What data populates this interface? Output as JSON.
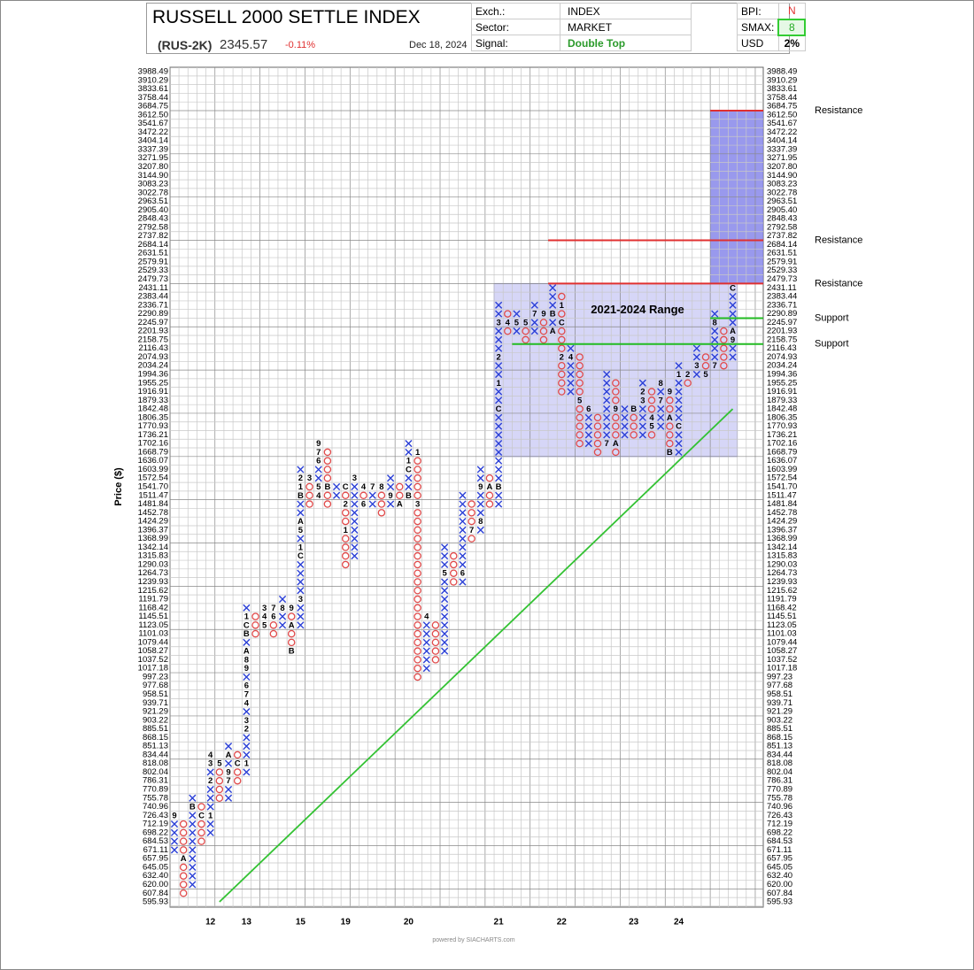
{
  "header": {
    "title": "RUSSELL 2000 SETTLE INDEX",
    "symbol": "(RUS-2K)",
    "price": "2345.57",
    "change": "-0.11%",
    "date": "Dec 18, 2024",
    "exch_label": "Exch.:",
    "exch": "INDEX",
    "sector_label": "Sector:",
    "sector": "MARKET",
    "signal_label": "Signal:",
    "signal": "Double Top",
    "bpi_label": "BPI:",
    "bpi": "N",
    "smax_label": "SMAX:",
    "smax": "8",
    "usd_label": "USD",
    "usd": "2%"
  },
  "chart_data": {
    "type": "point_and_figure",
    "y_label": "Price ($)",
    "log_scale": true,
    "grid": true,
    "ylim": [
      595.93,
      3988.49
    ],
    "yticks": [
      3988.49,
      3910.29,
      3833.61,
      3758.44,
      3684.75,
      {
        "value": 3612.5,
        "label": "3612.50"
      },
      3541.67,
      3472.22,
      3404.14,
      3337.39,
      3271.95,
      {
        "value": 3207.8,
        "label": "3207.80"
      },
      {
        "value": 3144.9,
        "label": "3144.90"
      },
      3083.23,
      3022.78,
      2963.51,
      {
        "value": 2905.4,
        "label": "2905.40"
      },
      2848.43,
      2792.58,
      2737.82,
      2684.14,
      2631.51,
      2579.91,
      2529.33,
      2479.73,
      2431.11,
      2383.44,
      2336.71,
      2290.89,
      2245.97,
      2201.93,
      2158.75,
      2116.43,
      2074.93,
      2034.24,
      1994.36,
      1955.25,
      1916.91,
      1879.33,
      1842.48,
      1806.35,
      1770.93,
      1736.21,
      1702.16,
      1668.79,
      1636.07,
      1603.99,
      1572.54,
      {
        "value": 1541.7,
        "label": "1541.70"
      },
      1511.47,
      1481.84,
      1452.78,
      1424.29,
      1396.37,
      1368.99,
      1342.14,
      1315.83,
      1290.03,
      1264.73,
      1239.93,
      1215.62,
      1191.79,
      1168.42,
      1145.51,
      1123.05,
      1101.03,
      1079.44,
      1058.27,
      1037.52,
      1017.18,
      997.23,
      977.68,
      958.51,
      939.71,
      921.29,
      903.22,
      885.51,
      868.15,
      851.13,
      834.44,
      818.08,
      802.04,
      786.31,
      770.89,
      755.78,
      740.96,
      726.43,
      712.19,
      698.22,
      684.53,
      671.11,
      657.95,
      645.05,
      {
        "value": 632.4,
        "label": "632.40"
      },
      {
        "value": 620,
        "label": "620.00"
      },
      607.84,
      595.93
    ],
    "colors": {
      "X": "#2a3fd6",
      "O": "#e14b4b"
    },
    "columns": [
      {
        "kind": "X",
        "low": 671.11,
        "high": 726.43,
        "months": [
          {
            "label": "9",
            "value": 726.43
          }
        ]
      },
      {
        "kind": "O",
        "low": 607.84,
        "high": 712.19,
        "months": [
          {
            "label": "A",
            "value": 657.95
          }
        ]
      },
      {
        "kind": "X",
        "low": 620,
        "high": 755.78,
        "months": [
          {
            "label": "B",
            "value": 740.96
          }
        ]
      },
      {
        "kind": "O",
        "low": 684.53,
        "high": 740.96,
        "months": [
          {
            "label": "C",
            "value": 726.43
          }
        ]
      },
      {
        "kind": "X",
        "low": 698.22,
        "high": 834.44,
        "year": "12",
        "months": [
          {
            "label": "1",
            "value": 726.43
          },
          {
            "label": "2",
            "value": 786.31
          },
          {
            "label": "3",
            "value": 818.08
          },
          {
            "label": "4",
            "value": 834.44
          }
        ]
      },
      {
        "kind": "O",
        "low": 755.78,
        "high": 818.08,
        "months": [
          {
            "label": "5",
            "value": 818.08
          }
        ]
      },
      {
        "kind": "X",
        "low": 755.78,
        "high": 851.13,
        "months": [
          {
            "label": "7",
            "value": 786.31
          },
          {
            "label": "9",
            "value": 802.04
          },
          {
            "label": "A",
            "value": 834.44
          }
        ]
      },
      {
        "kind": "O",
        "low": 786.31,
        "high": 834.44,
        "months": [
          {
            "label": "C",
            "value": 818.08
          }
        ]
      },
      {
        "kind": "X",
        "low": 802.04,
        "high": 1168.42,
        "year": "13",
        "months": [
          {
            "label": "1",
            "value": 818.08
          },
          {
            "label": "2",
            "value": 885.51
          },
          {
            "label": "3",
            "value": 903.22
          },
          {
            "label": "4",
            "value": 939.71
          },
          {
            "label": "7",
            "value": 958.51
          },
          {
            "label": "6",
            "value": 977.68
          },
          {
            "label": "9",
            "value": 1017.18
          },
          {
            "label": "8",
            "value": 1037.52
          },
          {
            "label": "A",
            "value": 1058.27
          },
          {
            "label": "B",
            "value": 1101.03
          },
          {
            "label": "C",
            "value": 1123.05
          },
          {
            "label": "1",
            "value": 1145.51
          }
        ]
      },
      {
        "kind": "O",
        "low": 1101.03,
        "high": 1145.51
      },
      {
        "kind": "X",
        "low": 1123.05,
        "high": 1168.42,
        "months": [
          {
            "label": "3",
            "value": 1168.42
          },
          {
            "label": "4",
            "value": 1145.51
          },
          {
            "label": "5",
            "value": 1123.05
          }
        ]
      },
      {
        "kind": "O",
        "low": 1101.03,
        "high": 1168.42,
        "months": [
          {
            "label": "7",
            "value": 1168.42
          },
          {
            "label": "6",
            "value": 1145.51
          }
        ]
      },
      {
        "kind": "X",
        "low": 1123.05,
        "high": 1191.79,
        "months": [
          {
            "label": "8",
            "value": 1168.42
          }
        ]
      },
      {
        "kind": "O",
        "low": 1058.27,
        "high": 1168.42,
        "months": [
          {
            "label": "9",
            "value": 1168.42
          },
          {
            "label": "A",
            "value": 1123.05
          },
          {
            "label": "B",
            "value": 1058.27
          }
        ]
      },
      {
        "kind": "X",
        "low": 1123.05,
        "high": 1603.99,
        "year": "15",
        "months": [
          {
            "label": "3",
            "value": 1191.79
          },
          {
            "label": "C",
            "value": 1315.83
          },
          {
            "label": "1",
            "value": 1342.14
          },
          {
            "label": "5",
            "value": 1396.37
          },
          {
            "label": "A",
            "value": 1424.29
          },
          {
            "label": "B",
            "value": 1511.47
          },
          {
            "label": "1",
            "value": 1541.7
          },
          {
            "label": "2",
            "value": 1572.54
          }
        ]
      },
      {
        "kind": "O",
        "low": 1481.84,
        "high": 1572.54,
        "months": [
          {
            "label": "3",
            "value": 1572.54
          }
        ]
      },
      {
        "kind": "X",
        "low": 1511.47,
        "high": 1702.16,
        "months": [
          {
            "label": "4",
            "value": 1511.47
          },
          {
            "label": "5",
            "value": 1541.7
          },
          {
            "label": "6",
            "value": 1636.07
          },
          {
            "label": "7",
            "value": 1668.79
          },
          {
            "label": "9",
            "value": 1702.16
          }
        ]
      },
      {
        "kind": "O",
        "low": 1481.84,
        "high": 1668.79,
        "months": [
          {
            "label": "B",
            "value": 1541.7
          }
        ]
      },
      {
        "kind": "X",
        "low": 1511.47,
        "high": 1541.7
      },
      {
        "kind": "O",
        "low": 1290.03,
        "high": 1541.7,
        "year": "19",
        "months": [
          {
            "label": "C",
            "value": 1541.7
          },
          {
            "label": "2",
            "value": 1481.84
          },
          {
            "label": "1",
            "value": 1396.37
          }
        ]
      },
      {
        "kind": "X",
        "low": 1315.83,
        "high": 1572.54,
        "months": [
          {
            "label": "3",
            "value": 1572.54
          }
        ]
      },
      {
        "kind": "O",
        "low": 1481.84,
        "high": 1541.7,
        "months": [
          {
            "label": "4",
            "value": 1541.7
          },
          {
            "label": "6",
            "value": 1481.84
          }
        ]
      },
      {
        "kind": "X",
        "low": 1481.84,
        "high": 1541.7,
        "months": [
          {
            "label": "7",
            "value": 1541.7
          }
        ]
      },
      {
        "kind": "O",
        "low": 1452.78,
        "high": 1541.7,
        "months": [
          {
            "label": "8",
            "value": 1541.7
          }
        ]
      },
      {
        "kind": "X",
        "low": 1481.84,
        "high": 1572.54,
        "months": [
          {
            "label": "9",
            "value": 1511.47
          }
        ]
      },
      {
        "kind": "O",
        "low": 1481.84,
        "high": 1541.7,
        "months": [
          {
            "label": "A",
            "value": 1481.84
          }
        ]
      },
      {
        "kind": "X",
        "low": 1511.47,
        "high": 1702.16,
        "year": "20",
        "months": [
          {
            "label": "B",
            "value": 1511.47
          },
          {
            "label": "C",
            "value": 1603.99
          },
          {
            "label": "1",
            "value": 1636.07
          }
        ]
      },
      {
        "kind": "O",
        "low": 997.23,
        "high": 1668.79,
        "months": [
          {
            "label": "1",
            "value": 1668.79
          },
          {
            "label": "3",
            "value": 1481.84
          }
        ]
      },
      {
        "kind": "X",
        "low": 1017.18,
        "high": 1145.51,
        "months": [
          {
            "label": "4",
            "value": 1145.51
          }
        ]
      },
      {
        "kind": "O",
        "low": 1037.52,
        "high": 1123.05
      },
      {
        "kind": "X",
        "low": 1058.27,
        "high": 1342.14,
        "months": [
          {
            "label": "5",
            "value": 1264.73
          }
        ]
      },
      {
        "kind": "O",
        "low": 1239.93,
        "high": 1315.83
      },
      {
        "kind": "X",
        "low": 1239.93,
        "high": 1511.47,
        "months": [
          {
            "label": "6",
            "value": 1264.73
          }
        ]
      },
      {
        "kind": "O",
        "low": 1368.99,
        "high": 1481.84,
        "months": [
          {
            "label": "7",
            "value": 1396.37
          }
        ]
      },
      {
        "kind": "X",
        "low": 1396.37,
        "high": 1603.99,
        "months": [
          {
            "label": "8",
            "value": 1424.29
          },
          {
            "label": "9",
            "value": 1541.7
          }
        ]
      },
      {
        "kind": "O",
        "low": 1481.84,
        "high": 1572.54,
        "months": [
          {
            "label": "A",
            "value": 1541.7
          }
        ]
      },
      {
        "kind": "X",
        "low": 1481.84,
        "high": 2336.71,
        "year": "21",
        "months": [
          {
            "label": "B",
            "value": 1541.7
          },
          {
            "label": "C",
            "value": 1842.48
          },
          {
            "label": "1",
            "value": 1955.25
          },
          {
            "label": "2",
            "value": 2074.93
          },
          {
            "label": "3",
            "value": 2245.97
          }
        ]
      },
      {
        "kind": "O",
        "low": 2201.93,
        "high": 2290.89,
        "months": [
          {
            "label": "4",
            "value": 2245.97
          }
        ]
      },
      {
        "kind": "X",
        "low": 2201.93,
        "high": 2290.89,
        "months": [
          {
            "label": "5",
            "value": 2245.97
          }
        ]
      },
      {
        "kind": "O",
        "low": 2158.75,
        "high": 2245.97,
        "months": [
          {
            "label": "5",
            "value": 2245.97
          }
        ]
      },
      {
        "kind": "X",
        "low": 2201.93,
        "high": 2336.71,
        "months": [
          {
            "label": "7",
            "value": 2290.89
          }
        ]
      },
      {
        "kind": "O",
        "low": 2158.75,
        "high": 2290.89,
        "months": [
          {
            "label": "9",
            "value": 2290.89
          }
        ]
      },
      {
        "kind": "X",
        "low": 2201.93,
        "high": 2431.11,
        "months": [
          {
            "label": "A",
            "value": 2201.93
          },
          {
            "label": "B",
            "value": 2290.89
          }
        ]
      },
      {
        "kind": "O",
        "low": 1916.91,
        "high": 2383.44,
        "year": "22",
        "months": [
          {
            "label": "1",
            "value": 2336.71
          },
          {
            "label": "C",
            "value": 2245.97
          },
          {
            "label": "2",
            "value": 2074.93
          }
        ]
      },
      {
        "kind": "X",
        "low": 1916.91,
        "high": 2116.43,
        "months": [
          {
            "label": "4",
            "value": 2074.93
          }
        ]
      },
      {
        "kind": "O",
        "low": 1702.16,
        "high": 2074.93,
        "months": [
          {
            "label": "5",
            "value": 1879.33
          }
        ]
      },
      {
        "kind": "X",
        "low": 1702.16,
        "high": 1842.48,
        "months": [
          {
            "label": "6",
            "value": 1842.48
          }
        ]
      },
      {
        "kind": "O",
        "low": 1668.79,
        "high": 1806.35
      },
      {
        "kind": "X",
        "low": 1702.16,
        "high": 1994.36,
        "months": [
          {
            "label": "7",
            "value": 1702.16
          }
        ]
      },
      {
        "kind": "O",
        "low": 1668.79,
        "high": 1955.25,
        "months": [
          {
            "label": "9",
            "value": 1842.48
          },
          {
            "label": "A",
            "value": 1702.16
          }
        ]
      },
      {
        "kind": "X",
        "low": 1736.21,
        "high": 1842.48
      },
      {
        "kind": "O",
        "low": 1736.21,
        "high": 1842.48,
        "year": "23",
        "months": [
          {
            "label": "B",
            "value": 1842.48
          }
        ]
      },
      {
        "kind": "X",
        "low": 1736.21,
        "high": 1955.25,
        "months": [
          {
            "label": "3",
            "value": 1879.33
          },
          {
            "label": "2",
            "value": 1916.91
          }
        ]
      },
      {
        "kind": "O",
        "low": 1736.21,
        "high": 1916.91,
        "months": [
          {
            "label": "4",
            "value": 1806.35
          },
          {
            "label": "5",
            "value": 1770.93
          }
        ]
      },
      {
        "kind": "X",
        "low": 1770.93,
        "high": 1955.25,
        "months": [
          {
            "label": "7",
            "value": 1879.33
          },
          {
            "label": "8",
            "value": 1955.25
          }
        ]
      },
      {
        "kind": "O",
        "low": 1668.79,
        "high": 1916.91,
        "months": [
          {
            "label": "9",
            "value": 1916.91
          },
          {
            "label": "A",
            "value": 1806.35
          },
          {
            "label": "B",
            "value": 1668.79
          }
        ]
      },
      {
        "kind": "X",
        "low": 1668.79,
        "high": 2034.24,
        "year": "24",
        "months": [
          {
            "label": "C",
            "value": 1770.93
          },
          {
            "label": "1",
            "value": 1994.36
          }
        ]
      },
      {
        "kind": "O",
        "low": 1955.25,
        "high": 1994.36,
        "months": [
          {
            "label": "2",
            "value": 1994.36
          }
        ]
      },
      {
        "kind": "X",
        "low": 1994.36,
        "high": 2116.43,
        "months": [
          {
            "label": "3",
            "value": 2034.24
          }
        ]
      },
      {
        "kind": "O",
        "low": 1994.36,
        "high": 2074.93,
        "months": [
          {
            "label": "5",
            "value": 1994.36
          }
        ]
      },
      {
        "kind": "X",
        "low": 2034.24,
        "high": 2290.89,
        "months": [
          {
            "label": "7",
            "value": 2034.24
          },
          {
            "label": "8",
            "value": 2245.97
          }
        ]
      },
      {
        "kind": "O",
        "low": 2034.24,
        "high": 2201.93
      },
      {
        "kind": "X",
        "low": 2074.93,
        "high": 2431.11,
        "months": [
          {
            "label": "9",
            "value": 2158.75
          },
          {
            "label": "A",
            "value": 2201.93
          },
          {
            "label": "C",
            "value": 2431.11
          }
        ]
      }
    ],
    "range_box": {
      "label": "2021-2024 Range",
      "high": 2431.11,
      "low": 1668.79,
      "start_column": 36,
      "end_column": 62,
      "color": "#c8c8f4"
    },
    "target_box": {
      "high": 3612.5,
      "low": 2479.73,
      "start_column": 60,
      "color": "#7f7fe8"
    },
    "levels": [
      {
        "label": "Resistance",
        "value": 3612.5,
        "start_column": 60,
        "color": "#e03030"
      },
      {
        "label": "Resistance",
        "value": 2684.14,
        "start_column": 42,
        "color": "#e03030"
      },
      {
        "label": "Resistance",
        "value": 2431.11,
        "start_column": 42,
        "color": "#e03030"
      },
      {
        "label": "Support",
        "value": 2245.97,
        "start_column": 60,
        "color": "#22bb22"
      },
      {
        "label": "Support",
        "value": 2116.43,
        "start_column": 38,
        "color": "#22bb22"
      }
    ],
    "trendline": {
      "start_column": 5,
      "start_value": 595.93,
      "end_column": 62,
      "end_value": 1842.48,
      "color": "#33c233"
    }
  },
  "footer": "powered by SIACHARTS.com"
}
